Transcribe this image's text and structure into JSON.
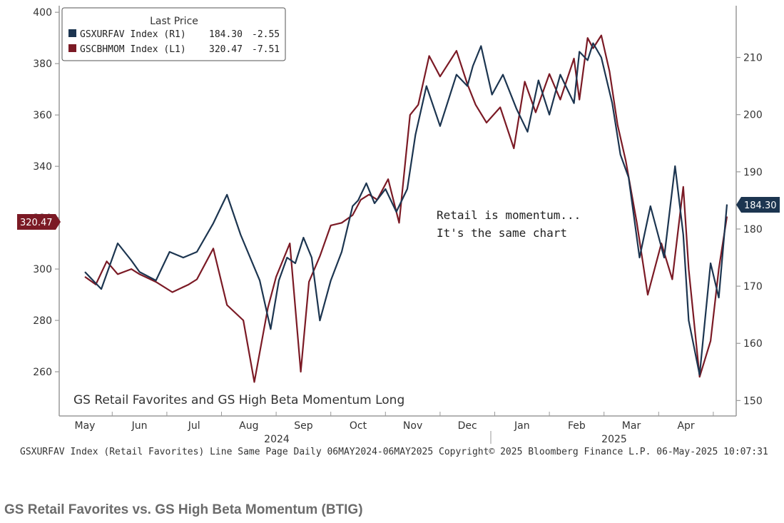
{
  "colors": {
    "navy": "#1c3550",
    "maroon": "#7b1a25",
    "axis": "#9a9a9a"
  },
  "legend": {
    "title": "Last Price",
    "entries": [
      {
        "name": "GSXURFAV Index  (R1)",
        "value": "184.30",
        "change": "-2.55"
      },
      {
        "name": "GSCBHMOM Index  (L1)",
        "value": "320.47",
        "change": "-7.51"
      }
    ]
  },
  "annotation": {
    "line1": "Retail is momentum...",
    "line2": "It's the same chart"
  },
  "inner_title": "GS Retail Favorites and GS High Beta Momentum Long",
  "footer": "GSXURFAV Index (Retail Favorites) Line Same Page  Daily 06MAY2024-06MAY2025 Copyright© 2025 Bloomberg Finance L.P. 06-May-2025 10:07:31",
  "caption": "GS Retail Favorites vs. GS High Beta Momentum (BTIG)",
  "chart_data": {
    "type": "line",
    "title": "GS Retail Favorites and GS High Beta Momentum Long",
    "x_ticks": [
      "May",
      "Jun",
      "Jul",
      "Aug",
      "Sep",
      "Oct",
      "Nov",
      "Dec",
      "Jan",
      "Feb",
      "Mar",
      "Apr"
    ],
    "years": [
      "2024",
      "2025"
    ],
    "left_axis": {
      "label": "GSCBHMOM Index (L1)",
      "ylim": [
        245,
        402
      ],
      "ticks": [
        260,
        280,
        300,
        320,
        340,
        360,
        380,
        400
      ]
    },
    "right_axis": {
      "label": "GSXURFAV Index (R1)",
      "ylim": [
        148.3,
        218.8
      ],
      "ticks": [
        150,
        160,
        170,
        180,
        190,
        200,
        210
      ]
    },
    "last_value_tags": {
      "left": "320.47",
      "right": "184.30"
    },
    "series": [
      {
        "name": "GSXURFAV Index (Retail Favorites)",
        "axis": "right",
        "color": "#1c3550",
        "x": [
          0,
          0.3,
          0.6,
          0.85,
          1.0,
          1.3,
          1.55,
          1.8,
          2.05,
          2.35,
          2.6,
          2.85,
          3.2,
          3.4,
          3.55,
          3.7,
          3.85,
          4.0,
          4.15,
          4.3,
          4.5,
          4.7,
          4.9,
          5.0,
          5.15,
          5.3,
          5.5,
          5.7,
          5.9,
          6.05,
          6.25,
          6.5,
          6.8,
          7.0,
          7.1,
          7.25,
          7.45,
          7.65,
          7.9,
          8.1,
          8.3,
          8.5,
          8.7,
          8.95,
          9.05,
          9.2,
          9.3,
          9.45,
          9.65,
          9.8,
          9.95,
          10.15,
          10.35,
          10.6,
          10.8,
          10.95,
          11.05,
          11.25,
          11.45,
          11.6,
          11.75
        ],
        "values": [
          172.5,
          169.5,
          177.5,
          174.5,
          172.5,
          171,
          176,
          175,
          176,
          181,
          186,
          179,
          171,
          162.5,
          171,
          175,
          174,
          178.5,
          175,
          164,
          171,
          176,
          184,
          185,
          188,
          184.5,
          187,
          183,
          187,
          196.5,
          205,
          198,
          207,
          205,
          208.5,
          212,
          203.5,
          207,
          201,
          197,
          206,
          200,
          207,
          202,
          211,
          209.5,
          212.5,
          210,
          202,
          193,
          189,
          175,
          184,
          175,
          191,
          179,
          164,
          154.5,
          174,
          168,
          184.3
        ]
      },
      {
        "name": "GSCBHMOM Index (High Beta Momentum)",
        "axis": "left",
        "color": "#7b1a25",
        "x": [
          0,
          0.2,
          0.4,
          0.6,
          0.85,
          1.0,
          1.3,
          1.6,
          1.9,
          2.05,
          2.35,
          2.6,
          2.9,
          3.1,
          3.35,
          3.5,
          3.75,
          3.95,
          4.1,
          4.3,
          4.5,
          4.7,
          4.9,
          5.05,
          5.2,
          5.35,
          5.55,
          5.75,
          5.95,
          6.1,
          6.3,
          6.5,
          6.8,
          7.0,
          7.15,
          7.35,
          7.6,
          7.85,
          8.05,
          8.25,
          8.5,
          8.7,
          8.95,
          9.05,
          9.2,
          9.3,
          9.45,
          9.6,
          9.75,
          9.9,
          10.1,
          10.3,
          10.55,
          10.75,
          10.95,
          11.05,
          11.25,
          11.45,
          11.6,
          11.75
        ],
        "values": [
          297,
          294,
          303,
          298,
          300,
          298,
          295,
          291,
          294,
          296,
          308,
          286,
          280,
          256,
          285,
          297,
          310,
          260,
          295,
          305,
          317,
          318,
          321,
          327,
          329,
          327,
          335,
          318,
          360,
          364,
          383,
          375,
          385,
          372,
          364,
          357,
          363,
          347,
          373,
          361,
          376,
          366,
          382,
          366,
          390,
          386,
          391,
          377,
          356,
          342,
          318,
          290,
          310,
          296,
          332,
          300,
          258,
          272,
          300,
          320.47
        ]
      }
    ]
  }
}
